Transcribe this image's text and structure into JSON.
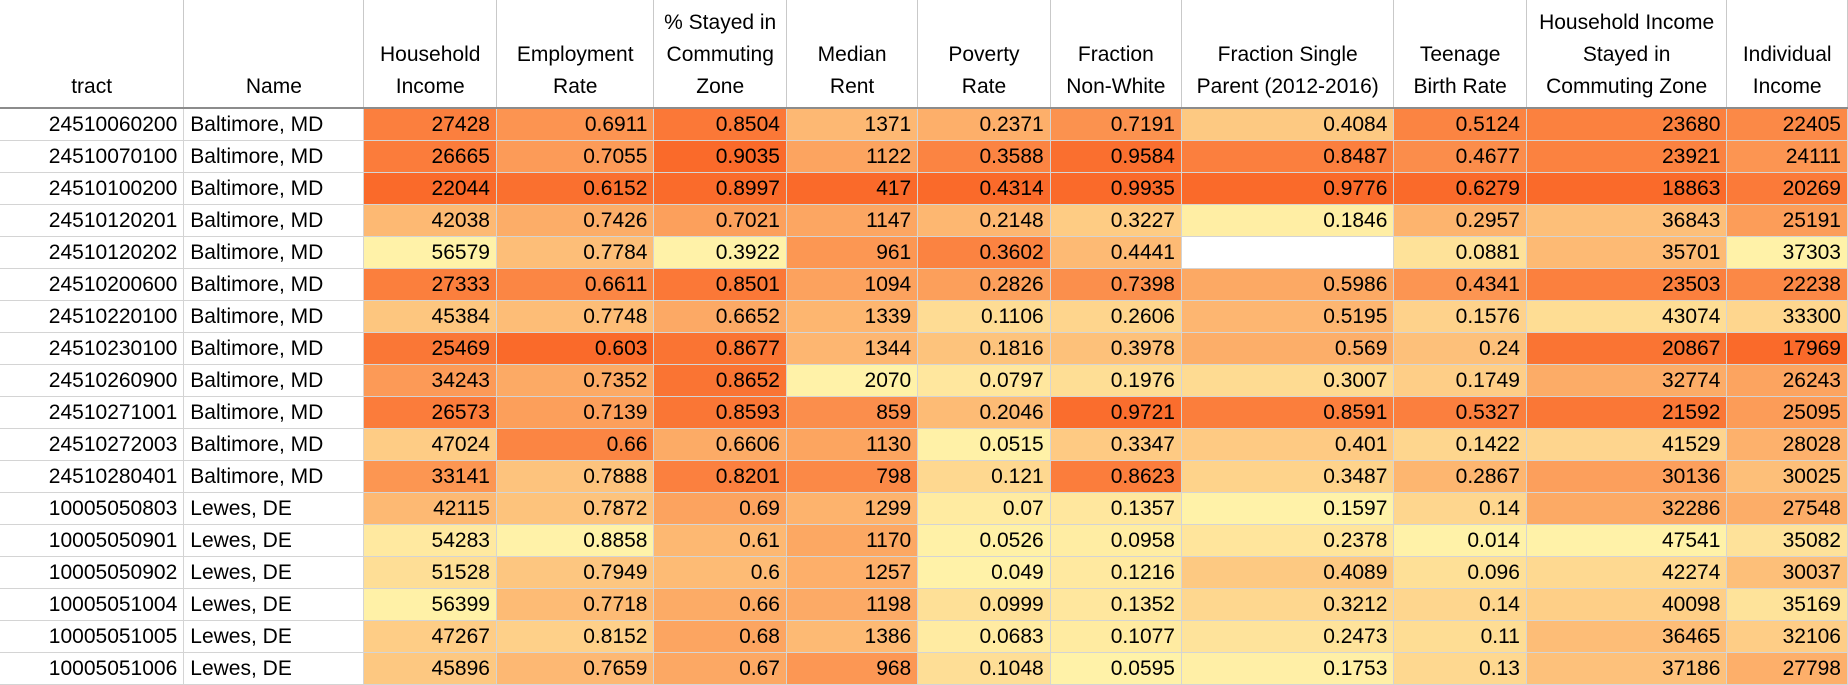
{
  "columns": [
    {
      "key": "tract",
      "lines": [
        "tract"
      ]
    },
    {
      "key": "name",
      "lines": [
        "Name"
      ]
    },
    {
      "key": "household_income",
      "lines": [
        "Household",
        "Income"
      ]
    },
    {
      "key": "employment_rate",
      "lines": [
        "Employment",
        "Rate"
      ]
    },
    {
      "key": "stayed_cz",
      "lines": [
        "% Stayed in",
        "Commuting",
        "Zone"
      ]
    },
    {
      "key": "median_rent",
      "lines": [
        "Median",
        "Rent"
      ]
    },
    {
      "key": "poverty_rate",
      "lines": [
        "Poverty",
        "Rate"
      ]
    },
    {
      "key": "frac_nonwhite",
      "lines": [
        "Fraction",
        "Non-White"
      ]
    },
    {
      "key": "frac_single_parent",
      "lines": [
        "Fraction Single",
        "Parent (2012-2016)"
      ]
    },
    {
      "key": "teen_birth",
      "lines": [
        "Teenage",
        "Birth Rate"
      ]
    },
    {
      "key": "hh_income_stayed",
      "lines": [
        "Household Income",
        "Stayed in",
        "Commuting Zone"
      ]
    },
    {
      "key": "indiv_income",
      "lines": [
        "Individual",
        "Income"
      ]
    }
  ],
  "rows": [
    {
      "tract": "24510060200",
      "name": "Baltimore, MD",
      "household_income": "27428",
      "employment_rate": "0.6911",
      "stayed_cz": "0.8504",
      "median_rent": "1371",
      "poverty_rate": "0.2371",
      "frac_nonwhite": "0.7191",
      "frac_single_parent": "0.4084",
      "teen_birth": "0.5124",
      "hh_income_stayed": "23680",
      "indiv_income": "22405"
    },
    {
      "tract": "24510070100",
      "name": "Baltimore, MD",
      "household_income": "26665",
      "employment_rate": "0.7055",
      "stayed_cz": "0.9035",
      "median_rent": "1122",
      "poverty_rate": "0.3588",
      "frac_nonwhite": "0.9584",
      "frac_single_parent": "0.8487",
      "teen_birth": "0.4677",
      "hh_income_stayed": "23921",
      "indiv_income": "24111"
    },
    {
      "tract": "24510100200",
      "name": "Baltimore, MD",
      "household_income": "22044",
      "employment_rate": "0.6152",
      "stayed_cz": "0.8997",
      "median_rent": "417",
      "poverty_rate": "0.4314",
      "frac_nonwhite": "0.9935",
      "frac_single_parent": "0.9776",
      "teen_birth": "0.6279",
      "hh_income_stayed": "18863",
      "indiv_income": "20269"
    },
    {
      "tract": "24510120201",
      "name": "Baltimore, MD",
      "household_income": "42038",
      "employment_rate": "0.7426",
      "stayed_cz": "0.7021",
      "median_rent": "1147",
      "poverty_rate": "0.2148",
      "frac_nonwhite": "0.3227",
      "frac_single_parent": "0.1846",
      "teen_birth": "0.2957",
      "hh_income_stayed": "36843",
      "indiv_income": "25191"
    },
    {
      "tract": "24510120202",
      "name": "Baltimore, MD",
      "household_income": "56579",
      "employment_rate": "0.7784",
      "stayed_cz": "0.3922",
      "median_rent": "961",
      "poverty_rate": "0.3602",
      "frac_nonwhite": "0.4441",
      "frac_single_parent": "",
      "teen_birth": "0.0881",
      "hh_income_stayed": "35701",
      "indiv_income": "37303"
    },
    {
      "tract": "24510200600",
      "name": "Baltimore, MD",
      "household_income": "27333",
      "employment_rate": "0.6611",
      "stayed_cz": "0.8501",
      "median_rent": "1094",
      "poverty_rate": "0.2826",
      "frac_nonwhite": "0.7398",
      "frac_single_parent": "0.5986",
      "teen_birth": "0.4341",
      "hh_income_stayed": "23503",
      "indiv_income": "22238"
    },
    {
      "tract": "24510220100",
      "name": "Baltimore, MD",
      "household_income": "45384",
      "employment_rate": "0.7748",
      "stayed_cz": "0.6652",
      "median_rent": "1339",
      "poverty_rate": "0.1106",
      "frac_nonwhite": "0.2606",
      "frac_single_parent": "0.5195",
      "teen_birth": "0.1576",
      "hh_income_stayed": "43074",
      "indiv_income": "33300"
    },
    {
      "tract": "24510230100",
      "name": "Baltimore, MD",
      "household_income": "25469",
      "employment_rate": "0.603",
      "stayed_cz": "0.8677",
      "median_rent": "1344",
      "poverty_rate": "0.1816",
      "frac_nonwhite": "0.3978",
      "frac_single_parent": "0.569",
      "teen_birth": "0.24",
      "hh_income_stayed": "20867",
      "indiv_income": "17969"
    },
    {
      "tract": "24510260900",
      "name": "Baltimore, MD",
      "household_income": "34243",
      "employment_rate": "0.7352",
      "stayed_cz": "0.8652",
      "median_rent": "2070",
      "poverty_rate": "0.0797",
      "frac_nonwhite": "0.1976",
      "frac_single_parent": "0.3007",
      "teen_birth": "0.1749",
      "hh_income_stayed": "32774",
      "indiv_income": "26243"
    },
    {
      "tract": "24510271001",
      "name": "Baltimore, MD",
      "household_income": "26573",
      "employment_rate": "0.7139",
      "stayed_cz": "0.8593",
      "median_rent": "859",
      "poverty_rate": "0.2046",
      "frac_nonwhite": "0.9721",
      "frac_single_parent": "0.8591",
      "teen_birth": "0.5327",
      "hh_income_stayed": "21592",
      "indiv_income": "25095"
    },
    {
      "tract": "24510272003",
      "name": "Baltimore, MD",
      "household_income": "47024",
      "employment_rate": "0.66",
      "stayed_cz": "0.6606",
      "median_rent": "1130",
      "poverty_rate": "0.0515",
      "frac_nonwhite": "0.3347",
      "frac_single_parent": "0.401",
      "teen_birth": "0.1422",
      "hh_income_stayed": "41529",
      "indiv_income": "28028"
    },
    {
      "tract": "24510280401",
      "name": "Baltimore, MD",
      "household_income": "33141",
      "employment_rate": "0.7888",
      "stayed_cz": "0.8201",
      "median_rent": "798",
      "poverty_rate": "0.121",
      "frac_nonwhite": "0.8623",
      "frac_single_parent": "0.3487",
      "teen_birth": "0.2867",
      "hh_income_stayed": "30136",
      "indiv_income": "30025"
    },
    {
      "tract": "10005050803",
      "name": "Lewes, DE",
      "household_income": "42115",
      "employment_rate": "0.7872",
      "stayed_cz": "0.69",
      "median_rent": "1299",
      "poverty_rate": "0.07",
      "frac_nonwhite": "0.1357",
      "frac_single_parent": "0.1597",
      "teen_birth": "0.14",
      "hh_income_stayed": "32286",
      "indiv_income": "27548"
    },
    {
      "tract": "10005050901",
      "name": "Lewes, DE",
      "household_income": "54283",
      "employment_rate": "0.8858",
      "stayed_cz": "0.61",
      "median_rent": "1170",
      "poverty_rate": "0.0526",
      "frac_nonwhite": "0.0958",
      "frac_single_parent": "0.2378",
      "teen_birth": "0.014",
      "hh_income_stayed": "47541",
      "indiv_income": "35082"
    },
    {
      "tract": "10005050902",
      "name": "Lewes, DE",
      "household_income": "51528",
      "employment_rate": "0.7949",
      "stayed_cz": "0.6",
      "median_rent": "1257",
      "poverty_rate": "0.049",
      "frac_nonwhite": "0.1216",
      "frac_single_parent": "0.4089",
      "teen_birth": "0.096",
      "hh_income_stayed": "42274",
      "indiv_income": "30037"
    },
    {
      "tract": "10005051004",
      "name": "Lewes, DE",
      "household_income": "56399",
      "employment_rate": "0.7718",
      "stayed_cz": "0.66",
      "median_rent": "1198",
      "poverty_rate": "0.0999",
      "frac_nonwhite": "0.1352",
      "frac_single_parent": "0.3212",
      "teen_birth": "0.14",
      "hh_income_stayed": "40098",
      "indiv_income": "35169"
    },
    {
      "tract": "10005051005",
      "name": "Lewes, DE",
      "household_income": "47267",
      "employment_rate": "0.8152",
      "stayed_cz": "0.68",
      "median_rent": "1386",
      "poverty_rate": "0.0683",
      "frac_nonwhite": "0.1077",
      "frac_single_parent": "0.2473",
      "teen_birth": "0.11",
      "hh_income_stayed": "36465",
      "indiv_income": "32106"
    },
    {
      "tract": "10005051006",
      "name": "Lewes, DE",
      "household_income": "45896",
      "employment_rate": "0.7659",
      "stayed_cz": "0.67",
      "median_rent": "968",
      "poverty_rate": "0.1048",
      "frac_nonwhite": "0.0595",
      "frac_single_parent": "0.1753",
      "teen_birth": "0.13",
      "hh_income_stayed": "37186",
      "indiv_income": "27798"
    }
  ],
  "heatmap": {
    "low_color": "#fff2a8",
    "high_color": "#fa6a2a",
    "direction": {
      "household_income": "low",
      "employment_rate": "low",
      "stayed_cz": "high",
      "median_rent": "low",
      "poverty_rate": "high",
      "frac_nonwhite": "high",
      "frac_single_parent": "high",
      "teen_birth": "high",
      "hh_income_stayed": "low",
      "indiv_income": "low"
    }
  }
}
